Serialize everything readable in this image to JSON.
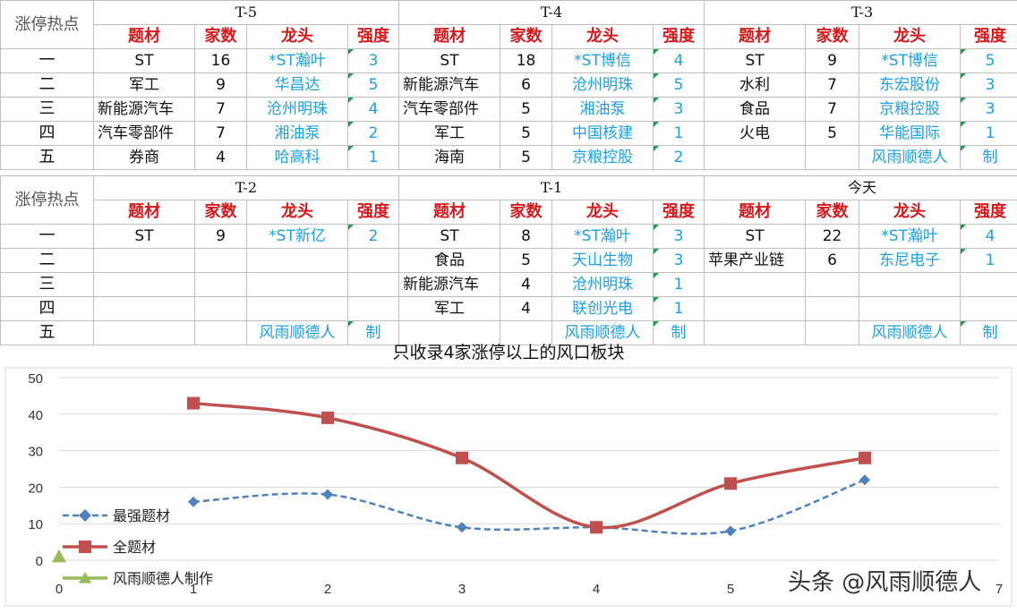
{
  "corner_label": "涨停热点",
  "col_headers": [
    "题材",
    "家数",
    "龙头",
    "强度"
  ],
  "ranks": [
    "一",
    "二",
    "三",
    "四",
    "五"
  ],
  "table_top": [
    {
      "period": "T-5",
      "rows": [
        [
          "ST",
          "16",
          "*ST瀚叶",
          "3"
        ],
        [
          "军工",
          "9",
          "华昌达",
          "5"
        ],
        [
          "新能源汽车",
          "7",
          "沧州明珠",
          "4"
        ],
        [
          "汽车零部件",
          "7",
          "湘油泵",
          "2"
        ],
        [
          "券商",
          "4",
          "哈高科",
          "1"
        ]
      ]
    },
    {
      "period": "T-4",
      "rows": [
        [
          "ST",
          "18",
          "*ST博信",
          "4"
        ],
        [
          "新能源汽车",
          "6",
          "沧州明珠",
          "5"
        ],
        [
          "汽车零部件",
          "5",
          "湘油泵",
          "3"
        ],
        [
          "军工",
          "5",
          "中国核建",
          "1"
        ],
        [
          "海南",
          "5",
          "京粮控股",
          "2"
        ]
      ]
    },
    {
      "period": "T-3",
      "rows": [
        [
          "ST",
          "9",
          "*ST博信",
          "5"
        ],
        [
          "水利",
          "7",
          "东宏股份",
          "3"
        ],
        [
          "食品",
          "7",
          "京粮控股",
          "3"
        ],
        [
          "火电",
          "5",
          "华能国际",
          "1"
        ],
        [
          "",
          "",
          "风雨顺德人",
          "制"
        ]
      ]
    }
  ],
  "table_bottom": [
    {
      "period": "T-2",
      "rows": [
        [
          "ST",
          "9",
          "*ST新亿",
          "2"
        ],
        [
          "",
          "",
          "",
          ""
        ],
        [
          "",
          "",
          "",
          ""
        ],
        [
          "",
          "",
          "",
          ""
        ],
        [
          "",
          "",
          "风雨顺德人",
          "制"
        ]
      ]
    },
    {
      "period": "T-1",
      "rows": [
        [
          "ST",
          "8",
          "*ST瀚叶",
          "3"
        ],
        [
          "食品",
          "5",
          "天山生物",
          "3"
        ],
        [
          "新能源汽车",
          "4",
          "沧州明珠",
          "1"
        ],
        [
          "军工",
          "4",
          "联创光电",
          "1"
        ],
        [
          "",
          "",
          "风雨顺德人",
          "制"
        ]
      ]
    },
    {
      "period": "今天",
      "rows": [
        [
          "ST",
          "22",
          "*ST瀚叶",
          "4"
        ],
        [
          "苹果产业链",
          "6",
          "东尼电子",
          "1"
        ],
        [
          "",
          "",
          "",
          ""
        ],
        [
          "",
          "",
          "",
          ""
        ],
        [
          "",
          "",
          "风雨顺德人",
          "制"
        ]
      ]
    }
  ],
  "chart_data": {
    "type": "line",
    "title": "只收录4家涨停以上的风口板块",
    "x_ticks": [
      0,
      1,
      2,
      3,
      4,
      5,
      7
    ],
    "ylim": [
      0,
      50
    ],
    "y_ticks": [
      0,
      10,
      20,
      30,
      40,
      50
    ],
    "grid": "horizontal",
    "legend_position": "left",
    "series": [
      {
        "name": "最强题材",
        "x": [
          1,
          2,
          3,
          4,
          5,
          6
        ],
        "values": [
          16,
          18,
          9,
          9,
          8,
          22
        ],
        "color": "#4f81bd",
        "style": "dashed",
        "marker": "diamond"
      },
      {
        "name": "全题材",
        "x": [
          1,
          2,
          3,
          4,
          5,
          6
        ],
        "values": [
          43,
          39,
          28,
          9,
          21,
          28
        ],
        "color": "#c0504d",
        "style": "solid",
        "marker": "square"
      },
      {
        "name": "风雨顺德人制作",
        "x": [
          0
        ],
        "values": [
          1
        ],
        "color": "#9bbb59",
        "style": "solid",
        "marker": "triangle"
      }
    ]
  },
  "watermark": "头条 @风雨顺德人"
}
